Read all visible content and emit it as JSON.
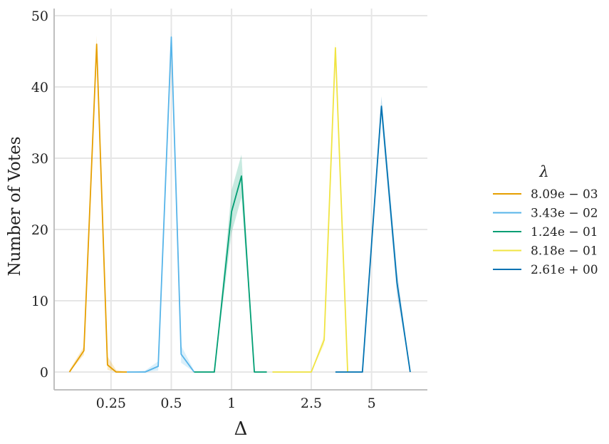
{
  "chart_data": {
    "type": "line",
    "xlabel": "Δ",
    "ylabel": "Number of Votes",
    "x_scale": "log",
    "xlim": [
      0.13,
      9.5
    ],
    "ylim": [
      -2.5,
      51
    ],
    "x_ticks": [
      0.25,
      0.5,
      1,
      2.5,
      5
    ],
    "x_tick_labels": [
      "0.25",
      "0.5",
      "1",
      "2.5",
      "5"
    ],
    "y_ticks": [
      0,
      10,
      20,
      30,
      40,
      50
    ],
    "y_tick_labels": [
      "0",
      "10",
      "20",
      "30",
      "40",
      "50"
    ],
    "grid": true,
    "legend": {
      "title": "λ",
      "placement": "right"
    },
    "series": [
      {
        "name": "8.09e − 03",
        "color": "#E69F00",
        "x": [
          0.155,
          0.183,
          0.212,
          0.24,
          0.265,
          0.3
        ],
        "y": [
          0,
          3,
          46,
          1,
          0,
          0
        ],
        "ci_upper": [
          0.3,
          3.6,
          47.2,
          2.2,
          0.3,
          0
        ],
        "ci_lower": [
          0,
          2.4,
          44.8,
          0.3,
          0,
          0
        ]
      },
      {
        "name": "3.43e − 02",
        "color": "#56B4E9",
        "x": [
          0.3,
          0.37,
          0.43,
          0.5,
          0.56,
          0.65
        ],
        "y": [
          0,
          0,
          0.8,
          47,
          2.5,
          0
        ],
        "ci_upper": [
          0,
          0.2,
          1.5,
          48.3,
          3.7,
          0.2
        ],
        "ci_lower": [
          0,
          0,
          0.2,
          45.7,
          1.3,
          0
        ]
      },
      {
        "name": "1.24e − 01",
        "color": "#009E73",
        "x": [
          0.65,
          0.82,
          1.0,
          1.12,
          1.3,
          1.5
        ],
        "y": [
          0,
          0,
          22.5,
          27.5,
          0,
          0
        ],
        "ci_upper": [
          0,
          0,
          25.5,
          30.5,
          0,
          0
        ],
        "ci_lower": [
          0,
          0,
          19.5,
          24.5,
          0,
          0
        ]
      },
      {
        "name": "8.18e − 01",
        "color": "#F0E442",
        "x": [
          1.6,
          2.5,
          2.9,
          3.3,
          3.8
        ],
        "y": [
          0,
          0,
          4.5,
          45.5,
          0
        ],
        "ci_upper": [
          0,
          0,
          5.2,
          46.5,
          0
        ],
        "ci_lower": [
          0,
          0,
          3.8,
          44.5,
          0
        ]
      },
      {
        "name": "2.61e + 00",
        "color": "#0072B2",
        "x": [
          3.3,
          4.5,
          5.6,
          6.7,
          7.8
        ],
        "y": [
          0,
          0,
          37.3,
          12.5,
          0
        ],
        "ci_upper": [
          0,
          0,
          38.7,
          14.2,
          0
        ],
        "ci_lower": [
          0,
          0,
          35.9,
          10.8,
          0
        ]
      }
    ]
  }
}
